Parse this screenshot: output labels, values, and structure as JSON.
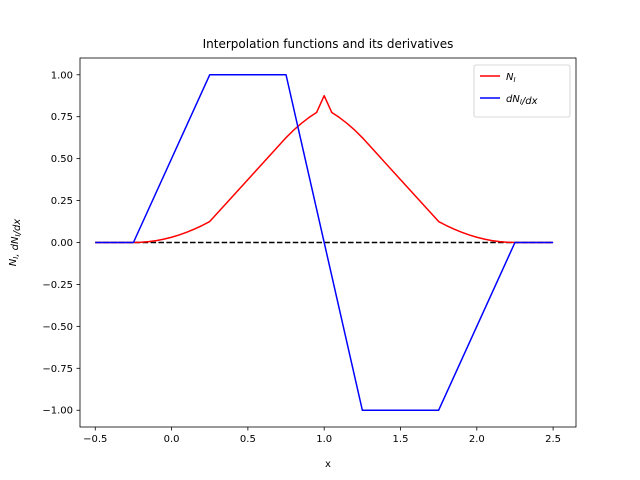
{
  "chart_data": {
    "type": "line",
    "title": "Interpolation functions and its derivatives",
    "xlabel": "x",
    "ylabel": "N_I, dN_I/dx",
    "xlim": [
      -0.6,
      2.65
    ],
    "ylim": [
      -1.1,
      1.1
    ],
    "xticks": [
      -0.5,
      0.0,
      0.5,
      1.0,
      1.5,
      2.0,
      2.5
    ],
    "xtick_labels": [
      "−0.5",
      "0.0",
      "0.5",
      "1.0",
      "1.5",
      "2.0",
      "2.5"
    ],
    "yticks": [
      1.0,
      0.75,
      0.5,
      0.25,
      0.0,
      -0.25,
      -0.5,
      -0.75,
      -1.0
    ],
    "ytick_labels": [
      "1.00",
      "0.75",
      "0.50",
      "0.25",
      "0.00",
      "−0.25",
      "−0.50",
      "−0.75",
      "−1.00"
    ],
    "legend_position": "top-right",
    "grid": false,
    "series": [
      {
        "name": "N_I",
        "color": "#ff0000",
        "x": [
          -0.5,
          -0.25,
          -0.2,
          -0.15,
          -0.1,
          -0.05,
          0.0,
          0.05,
          0.1,
          0.15,
          0.2,
          0.25,
          0.5,
          0.75,
          0.8,
          0.85,
          0.9,
          0.95,
          1.0,
          1.05,
          1.1,
          1.15,
          1.2,
          1.25,
          1.5,
          1.75,
          1.8,
          1.85,
          1.9,
          1.95,
          2.0,
          2.05,
          2.1,
          2.15,
          2.2,
          2.25,
          2.5
        ],
        "y": [
          0.0,
          0.0,
          0.00125,
          0.005,
          0.01125,
          0.02,
          0.03125,
          0.045,
          0.06125,
          0.08,
          0.10125,
          0.125,
          0.375,
          0.625,
          0.67,
          0.71,
          0.745,
          0.775,
          0.875,
          0.775,
          0.745,
          0.71,
          0.67,
          0.625,
          0.375,
          0.125,
          0.10125,
          0.08,
          0.06125,
          0.045,
          0.03125,
          0.02,
          0.01125,
          0.005,
          0.00125,
          0.0,
          0.0
        ]
      },
      {
        "name": "dN_I/dx",
        "color": "#0000ff",
        "x": [
          -0.5,
          -0.25,
          0.25,
          0.75,
          1.25,
          1.75,
          2.25,
          2.5
        ],
        "y": [
          0.0,
          0.0,
          1.0,
          1.0,
          -1.0,
          -1.0,
          0.0,
          0.0
        ]
      }
    ],
    "reference_line": {
      "y": 0.0,
      "x_range": [
        -0.5,
        2.5
      ],
      "color": "#000000",
      "style": "dashed"
    }
  }
}
